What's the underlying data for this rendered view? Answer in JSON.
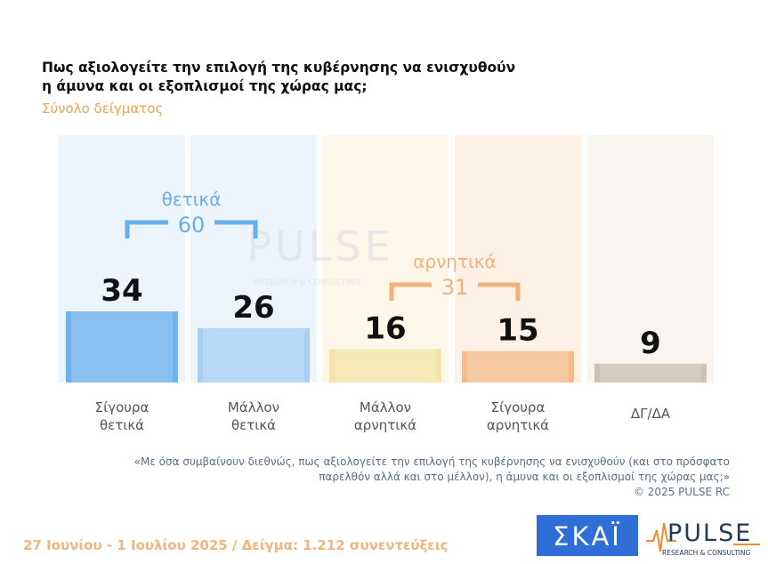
{
  "header": {
    "title_line1": "Πως αξιολογείτε την επιλογή της κυβέρνησης να ενισχυθούν",
    "title_line2": "η άμυνα και οι εξοπλισμοί της χώρας μας;",
    "subtitle": "Σύνολο δείγματος"
  },
  "chart_data": {
    "type": "bar",
    "categories": [
      [
        "Σίγουρα",
        "θετικά"
      ],
      [
        "Μάλλον",
        "θετικά"
      ],
      [
        "Μάλλον",
        "αρνητικά"
      ],
      [
        "Σίγουρα",
        "αρνητικά"
      ],
      [
        "ΔΓ/ΔΑ"
      ]
    ],
    "values": [
      34,
      26,
      16,
      15,
      9
    ],
    "bar_colors": [
      "#6fb3ec",
      "#a8d0f5",
      "#f6e3a9",
      "#f2bd8e",
      "#cfc0b0"
    ],
    "background_colors": [
      "#edf4fc",
      "#edf4fc",
      "#fdf7ea",
      "#fdf1e6",
      "#f8f5f1"
    ],
    "groups": [
      {
        "label": "θετικά",
        "total": "60",
        "color": "#6aaee8"
      },
      {
        "label": "αρνητικά",
        "total": "31",
        "color": "#f0b27a"
      }
    ],
    "watermark": {
      "brand": "PULSE",
      "tagline": "RESEARCH & CONSULTING"
    }
  },
  "note": {
    "line1": "«Με όσα συμβαίνουν διεθνώς, πως αξιολογείτε την επιλογή της κυβέρνησης να ενισχυθούν (και στο πρόσφατο",
    "line2": "παρελθόν αλλά και στο μέλλον), η άμυνα και οι εξοπλισμοί της χώρας μας;»",
    "copyright": "©  2025  PULSE RC"
  },
  "footer": {
    "text": "27 Ιουνίου - 1 Ιουλίου 2025  /  Δείγμα:  1.212 συνεντεύξεις"
  },
  "logos": {
    "skai": "ΣΚΑΪ",
    "pulse": "PULSE",
    "pulse_tagline": "RESEARCH & CONSULTING"
  }
}
